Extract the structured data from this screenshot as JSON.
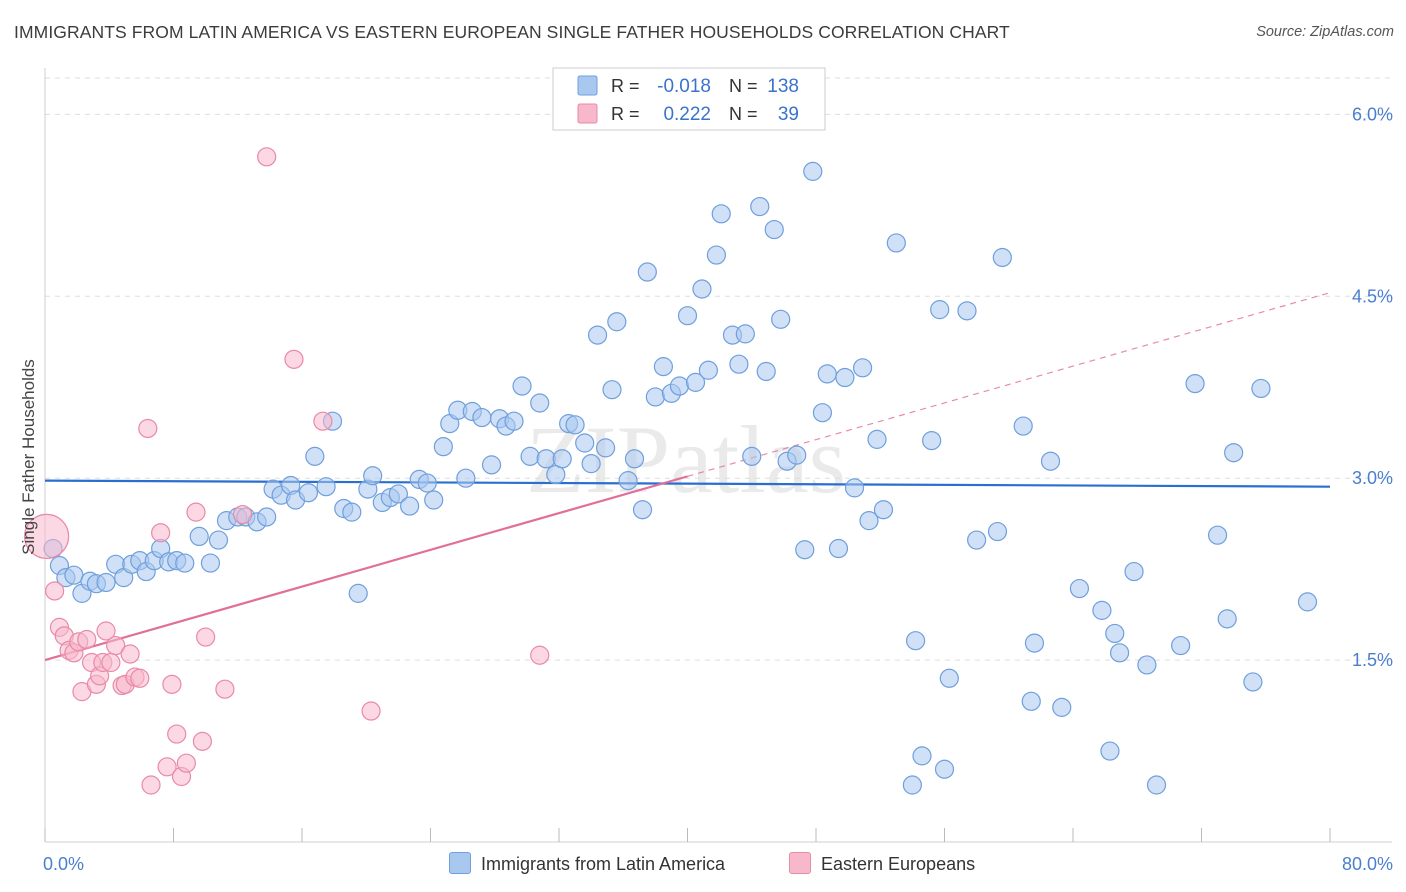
{
  "title": "IMMIGRANTS FROM LATIN AMERICA VS EASTERN EUROPEAN SINGLE FATHER HOUSEHOLDS CORRELATION CHART",
  "source": "Source: ZipAtlas.com",
  "watermark": "ZIPatlas",
  "colors": {
    "blue_fill": "#a9c8f0",
    "blue_stroke": "#6f9fdc",
    "blue_line": "#2a6fcf",
    "pink_fill": "#f7b8cc",
    "pink_stroke": "#e88aa8",
    "pink_line": "#e0709a",
    "axis_text": "#4a7fd0",
    "grid": "#dddddd"
  },
  "legend_stats": [
    {
      "r_label": "R =",
      "r_value": "-0.018",
      "n_label": "N =",
      "n_value": "138"
    },
    {
      "r_label": "R =",
      "r_value": "0.222",
      "n_label": "N =",
      "n_value": "39"
    }
  ],
  "bottom_legend": [
    "Immigrants from Latin America",
    "Eastern Europeans"
  ],
  "chart_data": {
    "type": "scatter",
    "title": "IMMIGRANTS FROM LATIN AMERICA VS EASTERN EUROPEAN SINGLE FATHER HOUSEHOLDS CORRELATION CHART",
    "xlabel": "",
    "ylabel": "Single Father Households",
    "xlim": [
      0,
      80
    ],
    "ylim": [
      0,
      6.3
    ],
    "x_tick_labels": [
      "0.0%",
      "80.0%"
    ],
    "y_tick_labels": [
      "1.5%",
      "3.0%",
      "4.5%",
      "6.0%"
    ],
    "y_ticks": [
      1.5,
      3.0,
      4.5,
      6.0
    ],
    "grid": "horizontal dashed",
    "legend": "top-center",
    "series": [
      {
        "name": "Immigrants from Latin America",
        "trend": {
          "x": [
            0,
            80
          ],
          "y": [
            2.98,
            2.93
          ],
          "style": "solid"
        },
        "points": [
          [
            0.5,
            2.42
          ],
          [
            0.9,
            2.28
          ],
          [
            1.3,
            2.18
          ],
          [
            1.8,
            2.2
          ],
          [
            2.3,
            2.05
          ],
          [
            2.8,
            2.15
          ],
          [
            3.2,
            2.13
          ],
          [
            3.8,
            2.14
          ],
          [
            4.4,
            2.29
          ],
          [
            4.9,
            2.18
          ],
          [
            5.4,
            2.29
          ],
          [
            5.9,
            2.32
          ],
          [
            6.3,
            2.23
          ],
          [
            6.8,
            2.32
          ],
          [
            7.2,
            2.42
          ],
          [
            7.7,
            2.31
          ],
          [
            8.2,
            2.32
          ],
          [
            8.7,
            2.3
          ],
          [
            9.6,
            2.52
          ],
          [
            10.3,
            2.3
          ],
          [
            10.8,
            2.49
          ],
          [
            11.3,
            2.65
          ],
          [
            12.0,
            2.68
          ],
          [
            12.5,
            2.68
          ],
          [
            13.2,
            2.64
          ],
          [
            13.8,
            2.68
          ],
          [
            14.2,
            2.91
          ],
          [
            14.7,
            2.86
          ],
          [
            15.3,
            2.94
          ],
          [
            15.6,
            2.82
          ],
          [
            16.4,
            2.88
          ],
          [
            16.8,
            3.18
          ],
          [
            17.5,
            2.93
          ],
          [
            17.9,
            3.47
          ],
          [
            18.6,
            2.75
          ],
          [
            19.1,
            2.72
          ],
          [
            19.5,
            2.05
          ],
          [
            20.1,
            2.91
          ],
          [
            20.4,
            3.02
          ],
          [
            21.0,
            2.8
          ],
          [
            21.5,
            2.84
          ],
          [
            22.0,
            2.87
          ],
          [
            22.7,
            2.77
          ],
          [
            23.3,
            2.99
          ],
          [
            23.8,
            2.96
          ],
          [
            24.2,
            2.82
          ],
          [
            24.8,
            3.26
          ],
          [
            25.2,
            3.45
          ],
          [
            25.7,
            3.56
          ],
          [
            26.2,
            3.0
          ],
          [
            26.6,
            3.55
          ],
          [
            27.2,
            3.5
          ],
          [
            27.8,
            3.11
          ],
          [
            28.3,
            3.49
          ],
          [
            28.7,
            3.43
          ],
          [
            29.2,
            3.47
          ],
          [
            29.7,
            3.76
          ],
          [
            30.2,
            3.18
          ],
          [
            30.8,
            3.62
          ],
          [
            31.2,
            3.16
          ],
          [
            31.8,
            3.03
          ],
          [
            32.2,
            3.16
          ],
          [
            32.6,
            3.45
          ],
          [
            33.0,
            3.44
          ],
          [
            33.6,
            3.29
          ],
          [
            34.0,
            3.12
          ],
          [
            34.4,
            4.18
          ],
          [
            34.9,
            3.25
          ],
          [
            35.3,
            3.73
          ],
          [
            35.6,
            4.29
          ],
          [
            36.3,
            2.98
          ],
          [
            36.7,
            3.16
          ],
          [
            37.2,
            2.74
          ],
          [
            37.5,
            4.7
          ],
          [
            38.0,
            3.67
          ],
          [
            38.5,
            3.92
          ],
          [
            39.0,
            3.7
          ],
          [
            39.5,
            3.76
          ],
          [
            40.0,
            4.34
          ],
          [
            40.5,
            3.79
          ],
          [
            40.9,
            4.56
          ],
          [
            41.3,
            3.89
          ],
          [
            41.8,
            4.84
          ],
          [
            42.1,
            5.18
          ],
          [
            42.8,
            4.18
          ],
          [
            43.2,
            3.94
          ],
          [
            43.6,
            4.19
          ],
          [
            44.0,
            3.18
          ],
          [
            44.5,
            5.24
          ],
          [
            44.9,
            3.88
          ],
          [
            45.4,
            5.05
          ],
          [
            45.8,
            4.31
          ],
          [
            46.2,
            3.14
          ],
          [
            46.8,
            3.19
          ],
          [
            47.3,
            2.41
          ],
          [
            47.8,
            5.53
          ],
          [
            48.4,
            3.54
          ],
          [
            48.7,
            3.86
          ],
          [
            49.4,
            2.42
          ],
          [
            49.8,
            3.83
          ],
          [
            50.4,
            2.92
          ],
          [
            50.9,
            3.91
          ],
          [
            51.3,
            2.65
          ],
          [
            51.8,
            3.32
          ],
          [
            52.2,
            2.74
          ],
          [
            53.0,
            4.94
          ],
          [
            54.2,
            1.66
          ],
          [
            54.6,
            0.71
          ],
          [
            55.2,
            3.31
          ],
          [
            55.7,
            4.39
          ],
          [
            56.0,
            0.6
          ],
          [
            56.3,
            1.35
          ],
          [
            57.4,
            4.38
          ],
          [
            58.0,
            2.49
          ],
          [
            59.3,
            2.56
          ],
          [
            59.6,
            4.82
          ],
          [
            60.9,
            3.43
          ],
          [
            61.4,
            1.16
          ],
          [
            61.6,
            1.64
          ],
          [
            62.6,
            3.14
          ],
          [
            63.3,
            1.11
          ],
          [
            64.4,
            2.09
          ],
          [
            65.8,
            1.91
          ],
          [
            66.3,
            0.75
          ],
          [
            66.6,
            1.72
          ],
          [
            66.9,
            1.56
          ],
          [
            67.8,
            2.23
          ],
          [
            68.6,
            1.46
          ],
          [
            69.2,
            0.47
          ],
          [
            70.7,
            1.62
          ],
          [
            71.6,
            3.78
          ],
          [
            73.0,
            2.53
          ],
          [
            73.6,
            1.84
          ],
          [
            74.0,
            3.21
          ],
          [
            75.2,
            1.32
          ],
          [
            75.7,
            3.74
          ],
          [
            78.6,
            1.98
          ],
          [
            54.0,
            0.47
          ]
        ]
      },
      {
        "name": "Eastern Europeans",
        "trend": {
          "x": [
            0,
            80
          ],
          "y": [
            1.5,
            4.53
          ],
          "style": "solid to 40, dashed beyond"
        },
        "points": [
          [
            0.1,
            2.52,
            "large"
          ],
          [
            0.6,
            2.07
          ],
          [
            0.9,
            1.77
          ],
          [
            1.2,
            1.7
          ],
          [
            1.5,
            1.58
          ],
          [
            1.8,
            1.56
          ],
          [
            2.1,
            1.65
          ],
          [
            2.3,
            1.24
          ],
          [
            2.6,
            1.67
          ],
          [
            2.9,
            1.48
          ],
          [
            3.2,
            1.3
          ],
          [
            3.4,
            1.37
          ],
          [
            3.6,
            1.48
          ],
          [
            3.8,
            1.74
          ],
          [
            4.1,
            1.48
          ],
          [
            4.4,
            1.62
          ],
          [
            4.8,
            1.29
          ],
          [
            5.0,
            1.3
          ],
          [
            5.3,
            1.55
          ],
          [
            5.6,
            1.36
          ],
          [
            5.9,
            1.35
          ],
          [
            6.4,
            3.41
          ],
          [
            6.6,
            0.47
          ],
          [
            7.2,
            2.55
          ],
          [
            7.6,
            0.62
          ],
          [
            7.9,
            1.3
          ],
          [
            8.2,
            0.89
          ],
          [
            8.5,
            0.54
          ],
          [
            8.8,
            0.65
          ],
          [
            9.4,
            2.72
          ],
          [
            9.8,
            0.83
          ],
          [
            10.0,
            1.69
          ],
          [
            11.2,
            1.26
          ],
          [
            12.3,
            2.7
          ],
          [
            13.8,
            5.65
          ],
          [
            15.5,
            3.98
          ],
          [
            17.3,
            3.47
          ],
          [
            20.3,
            1.08
          ],
          [
            30.8,
            1.54
          ]
        ]
      }
    ]
  }
}
